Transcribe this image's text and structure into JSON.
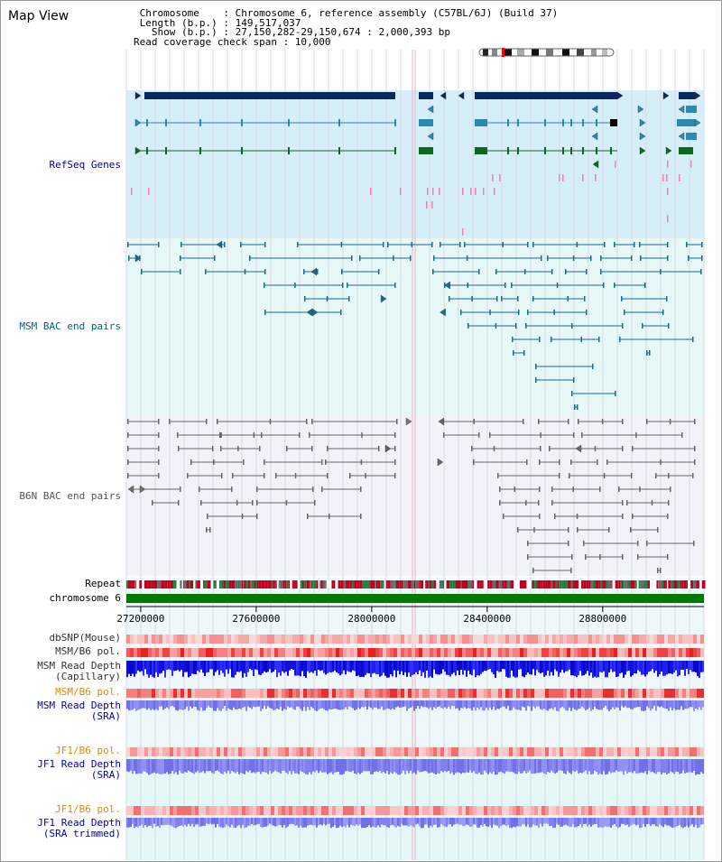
{
  "header": {
    "title": "Map View",
    "lines": [
      " Chromosome    : Chromosome 6, reference assembly (C57BL/6J) (Build 37)",
      " Length (b.p.) : 149,517,037",
      "   Show (b.p.) : 27,150,282-29,150,674 : 2,000,393 bp",
      "Read coverage check span : 10,000"
    ]
  },
  "colors": {
    "refseq_bg": "#d6eefa",
    "msm_bg": "#e6f8f8",
    "b6n_bg": "#f2f2fa",
    "refseq_label": "#00008b",
    "msm_label": "#006080",
    "b6n_label": "#555555",
    "orange_label": "#e08a00",
    "blue_label": "#0000aa",
    "chromosome": "#007a00"
  },
  "tracks": {
    "refseq": "RefSeq Genes",
    "msm_bac": "MSM BAC end pairs",
    "b6n_bac": "B6N BAC end pairs",
    "repeat": "Repeat",
    "chromosome": "chromosome 6",
    "dbsnp": "dbSNP(Mouse)",
    "msm_b6_pol_1": "MSM/B6 pol.",
    "msm_depth_cap": [
      "MSM Read Depth",
      "(Capillary)"
    ],
    "msm_b6_pol_2": "MSM/B6 pol.",
    "msm_depth_sra": [
      "MSM Read Depth",
      "(SRA)"
    ],
    "jf1_b6_pol_1": "JF1/B6 pol.",
    "jf1_depth_sra": [
      "JF1 Read Depth",
      "(SRA)"
    ],
    "jf1_b6_pol_2": "JF1/B6 pol.",
    "jf1_depth_trim": [
      "JF1 Read Depth",
      "(SRA trimmed)"
    ]
  },
  "axis": {
    "start": 27150282,
    "end": 29150674,
    "ticks": [
      "27200000",
      "27600000",
      "28000000",
      "28400000",
      "28800000"
    ]
  }
}
